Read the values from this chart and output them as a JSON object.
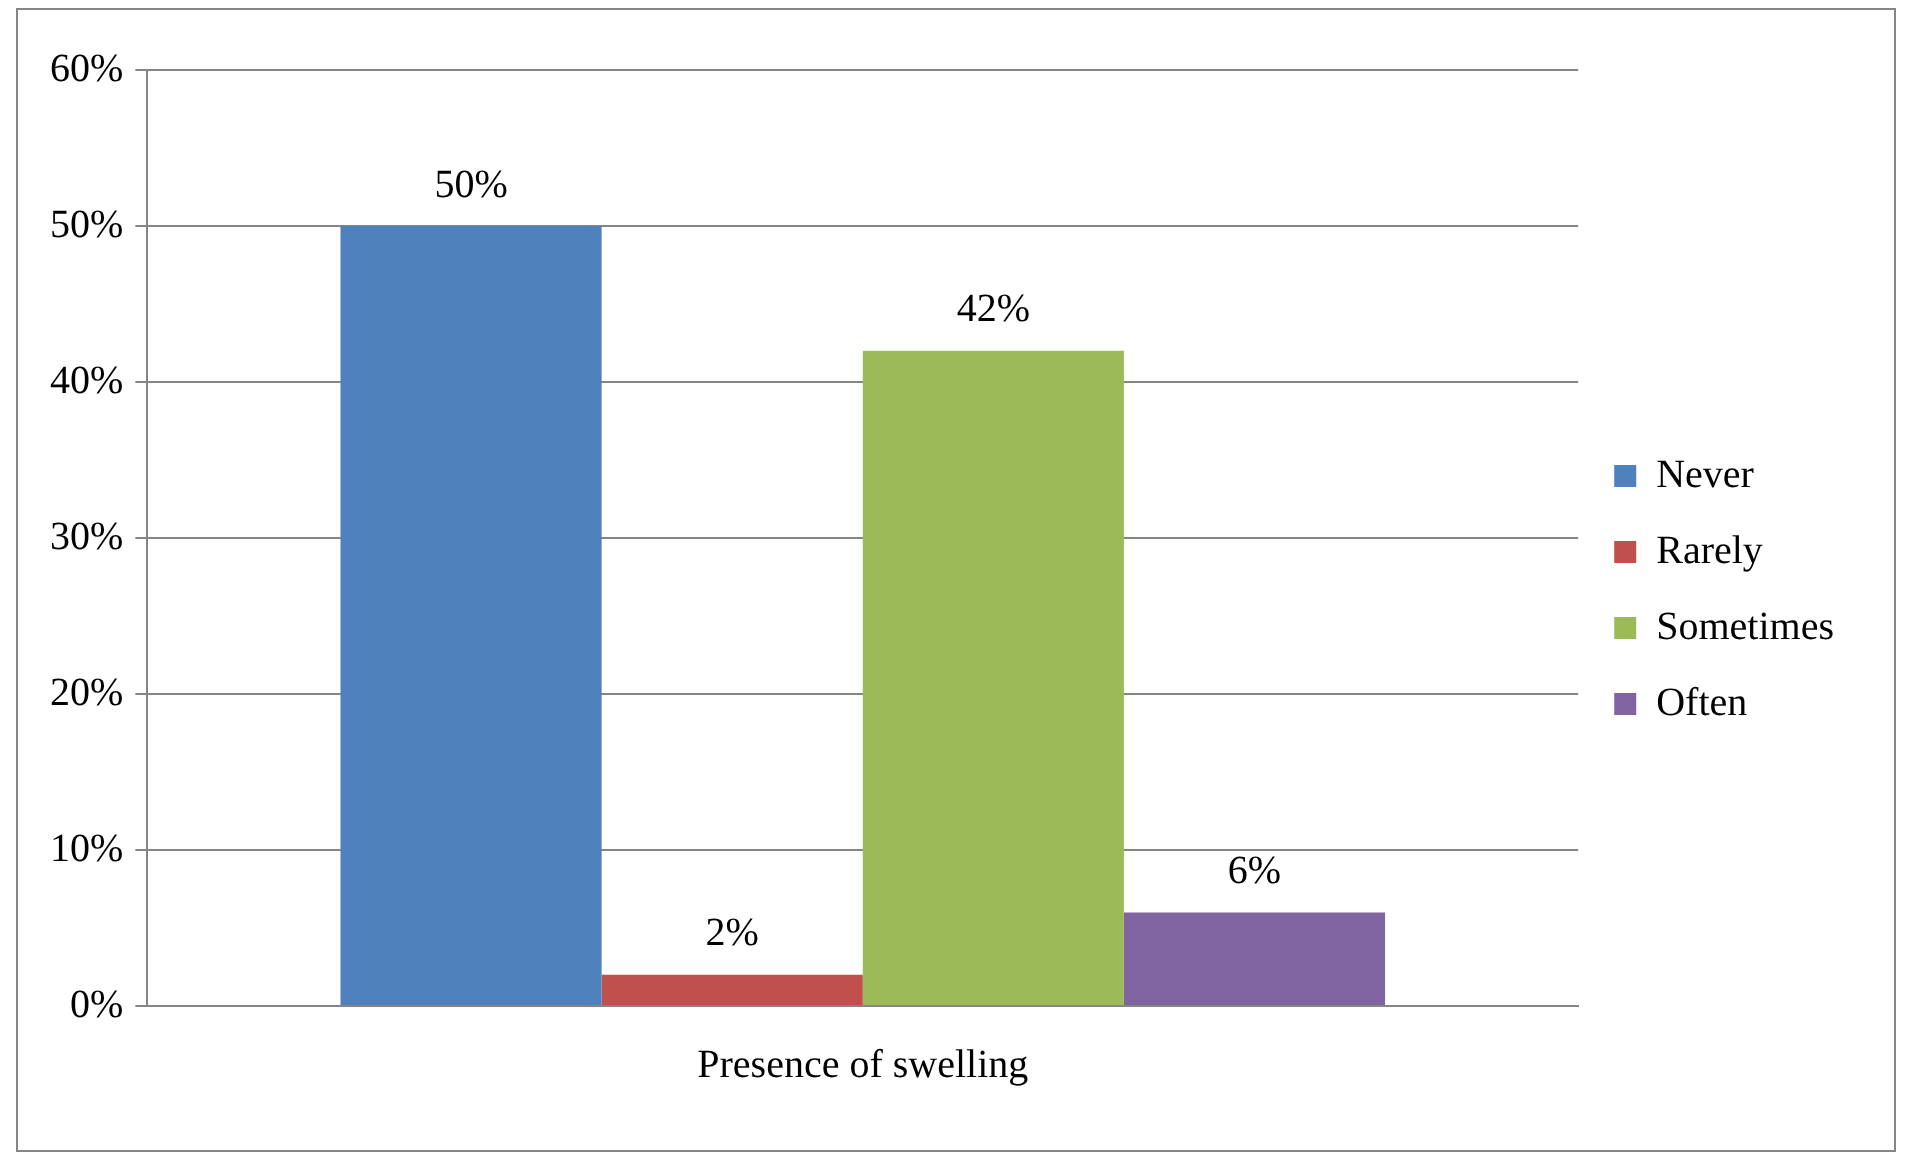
{
  "chart_data": {
    "type": "bar",
    "categories": [
      "Presence of swelling"
    ],
    "series": [
      {
        "name": "Never",
        "color": "#4f81bd",
        "values": [
          50
        ],
        "value_labels": [
          "50%"
        ]
      },
      {
        "name": "Rarely",
        "color": "#c0504d",
        "values": [
          2
        ],
        "value_labels": [
          "2%"
        ]
      },
      {
        "name": "Sometimes",
        "color": "#9bbb59",
        "values": [
          42
        ],
        "value_labels": [
          "42%"
        ]
      },
      {
        "name": "Often",
        "color": "#8064a2",
        "values": [
          6
        ],
        "value_labels": [
          "6%"
        ]
      }
    ],
    "ylim": [
      0,
      60
    ],
    "yticks": [
      {
        "value": 0,
        "label": "0%"
      },
      {
        "value": 10,
        "label": "10%"
      },
      {
        "value": 20,
        "label": "20%"
      },
      {
        "value": 30,
        "label": "30%"
      },
      {
        "value": 40,
        "label": "40%"
      },
      {
        "value": 50,
        "label": "50%"
      },
      {
        "value": 60,
        "label": "60%"
      }
    ],
    "grid": "y",
    "legend": "right"
  }
}
